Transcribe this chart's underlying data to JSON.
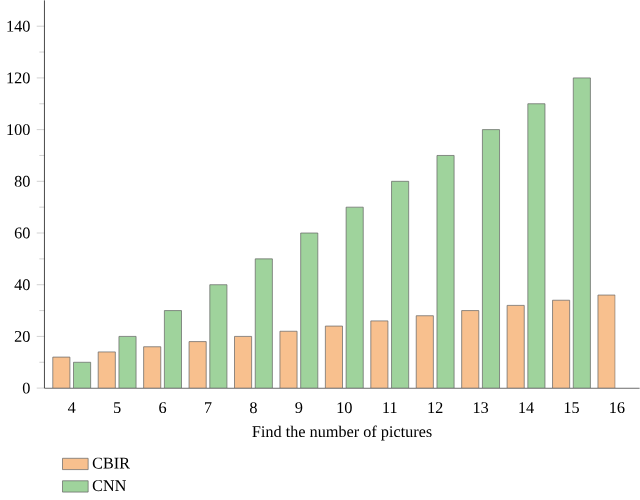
{
  "chart_data": {
    "type": "bar",
    "xlabel": "Find the number of pictures",
    "categories": [
      "4",
      "5",
      "6",
      "7",
      "8",
      "9",
      "10",
      "11",
      "12",
      "13",
      "14",
      "15",
      "16"
    ],
    "series": [
      {
        "name": "CBIR",
        "color": "#f8c08e",
        "values": [
          12,
          14,
          16,
          18,
          20,
          22,
          24,
          26,
          28,
          30,
          32,
          34,
          36
        ]
      },
      {
        "name": "CNN",
        "color": "#9fd39c",
        "values": [
          10,
          20,
          30,
          40,
          50,
          60,
          70,
          80,
          90,
          100,
          110,
          120,
          null
        ]
      }
    ],
    "ylim": [
      0,
      150
    ],
    "yticks": [
      0,
      20,
      40,
      60,
      80,
      100,
      120,
      140
    ],
    "grid": false,
    "legend": "bottom"
  }
}
